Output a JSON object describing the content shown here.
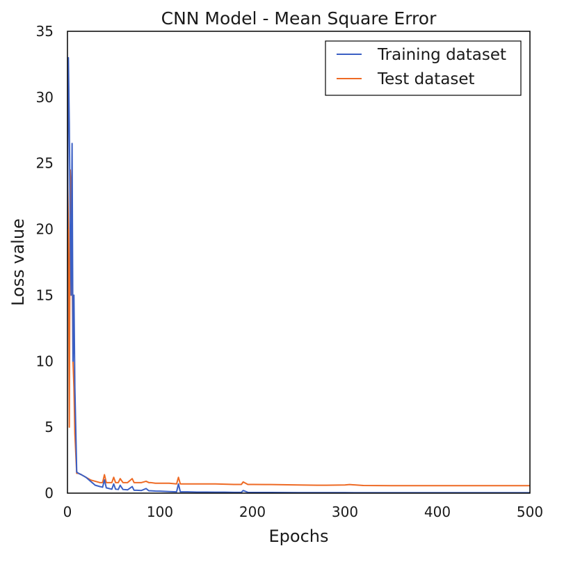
{
  "chart_data": {
    "type": "line",
    "title": "CNN Model - Mean Square Error",
    "xlabel": "Epochs",
    "ylabel": "Loss value",
    "xlim": [
      0,
      500
    ],
    "ylim": [
      0,
      35
    ],
    "xticks": [
      "0",
      "100",
      "200",
      "300",
      "400",
      "500"
    ],
    "yticks": [
      "0",
      "5",
      "10",
      "15",
      "20",
      "25",
      "30",
      "35"
    ],
    "grid": false,
    "legend_position": "top-right",
    "series": [
      {
        "name": "Training dataset",
        "color": "#3a5fc4",
        "x": [
          0,
          1,
          2,
          3,
          4,
          5,
          6,
          7,
          8,
          10,
          12,
          15,
          20,
          25,
          30,
          35,
          38,
          40,
          42,
          45,
          48,
          50,
          52,
          55,
          57,
          60,
          65,
          70,
          72,
          75,
          80,
          85,
          88,
          90,
          95,
          100,
          110,
          118,
          120,
          122,
          130,
          140,
          150,
          160,
          170,
          180,
          188,
          190,
          195,
          200,
          220,
          250,
          280,
          300,
          320,
          350,
          400,
          450,
          500
        ],
        "y": [
          20.0,
          33.0,
          28.0,
          20.0,
          15.0,
          26.5,
          10.0,
          15.0,
          8.0,
          1.6,
          1.5,
          1.4,
          1.2,
          0.9,
          0.6,
          0.5,
          0.45,
          1.0,
          0.4,
          0.35,
          0.3,
          0.7,
          0.3,
          0.28,
          0.6,
          0.28,
          0.25,
          0.5,
          0.22,
          0.22,
          0.2,
          0.35,
          0.18,
          0.18,
          0.16,
          0.15,
          0.12,
          0.1,
          0.7,
          0.1,
          0.1,
          0.08,
          0.08,
          0.07,
          0.07,
          0.06,
          0.06,
          0.2,
          0.06,
          0.05,
          0.05,
          0.04,
          0.04,
          0.04,
          0.03,
          0.03,
          0.03,
          0.03,
          0.03
        ]
      },
      {
        "name": "Test dataset",
        "color": "#ee6a24",
        "x": [
          0,
          1,
          2,
          3,
          4,
          5,
          6,
          7,
          8,
          10,
          12,
          15,
          20,
          25,
          30,
          35,
          38,
          40,
          42,
          45,
          48,
          50,
          52,
          55,
          57,
          60,
          65,
          70,
          72,
          75,
          80,
          85,
          88,
          90,
          95,
          100,
          110,
          118,
          120,
          122,
          130,
          140,
          150,
          160,
          170,
          180,
          188,
          190,
          195,
          200,
          220,
          250,
          270,
          280,
          300,
          305,
          320,
          350,
          400,
          450,
          500
        ],
        "y": [
          25.0,
          20.0,
          5.0,
          24.5,
          23.0,
          18.0,
          10.0,
          8.0,
          4.5,
          1.5,
          1.5,
          1.4,
          1.2,
          1.0,
          0.9,
          0.8,
          0.8,
          1.4,
          0.8,
          0.8,
          0.8,
          1.2,
          0.8,
          0.8,
          1.1,
          0.8,
          0.8,
          1.1,
          0.8,
          0.8,
          0.8,
          0.9,
          0.8,
          0.8,
          0.75,
          0.75,
          0.75,
          0.7,
          1.2,
          0.7,
          0.7,
          0.7,
          0.7,
          0.7,
          0.68,
          0.66,
          0.66,
          0.85,
          0.66,
          0.66,
          0.65,
          0.62,
          0.6,
          0.6,
          0.62,
          0.65,
          0.58,
          0.57,
          0.57,
          0.57,
          0.57
        ]
      }
    ]
  }
}
